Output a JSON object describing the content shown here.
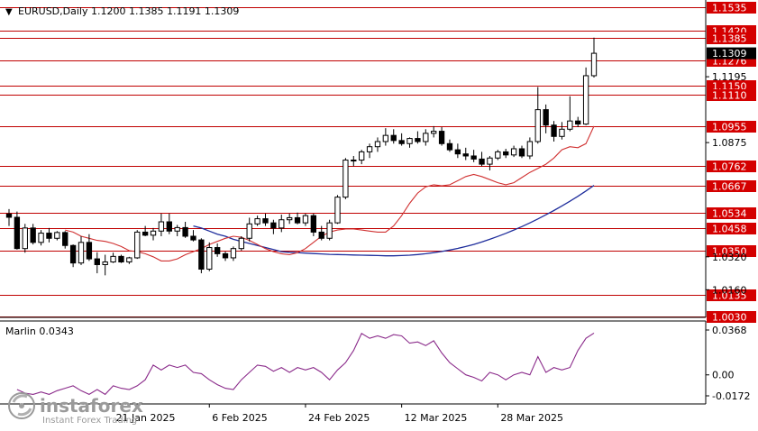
{
  "header": {
    "menu_glyph": "▼",
    "title_text": "EURUSD,Daily  1.1200 1.1385 1.1191 1.1309"
  },
  "indicator": {
    "title_text": "Marlin 0.0343",
    "axis_labels": [
      "0.0368",
      "0.00",
      "-0.0172"
    ]
  },
  "watermark": {
    "brand": "instaforex",
    "tagline": "Instant Forex Trading"
  },
  "colors": {
    "background": "#ffffff",
    "candle": "#000000",
    "level_line": "#c00000",
    "level_label_bg": "#d40000",
    "ma_slow": "#1e2d9c",
    "ma_fast": "#d03030",
    "oscillator": "#8a2a8a",
    "current_price_bg": "#000000"
  },
  "chart_data": {
    "type": "candlestick",
    "symbol": "EURUSD",
    "timeframe": "Daily",
    "last_ohlc": {
      "open": 1.12,
      "high": 1.1385,
      "low": 1.1191,
      "close": 1.1309
    },
    "y_range": [
      1.003,
      1.1535
    ],
    "x_tick_labels": [
      "21 Jan 2025",
      "6 Feb 2025",
      "24 Feb 2025",
      "12 Mar 2025",
      "28 Mar 2025"
    ],
    "x_tick_index": [
      13,
      25,
      37,
      49,
      61
    ],
    "price_axis_plain_labels": [
      "1.1195",
      "1.0875",
      "1.0320",
      "1.0160"
    ],
    "current_price_label": "1.1309",
    "levels": [
      {
        "value": 1.1535,
        "label": "1.1535"
      },
      {
        "value": 1.142,
        "label": "1.1420"
      },
      {
        "value": 1.1385,
        "label": "1.1385"
      },
      {
        "value": 1.1276,
        "label": "1.1276"
      },
      {
        "value": 1.115,
        "label": "1.1150"
      },
      {
        "value": 1.111,
        "label": "1.1110"
      },
      {
        "value": 1.0955,
        "label": "1.0955"
      },
      {
        "value": 1.0762,
        "label": "1.0762"
      },
      {
        "value": 1.0667,
        "label": "1.0667"
      },
      {
        "value": 1.0534,
        "label": "1.0534"
      },
      {
        "value": 1.0458,
        "label": "1.0458"
      },
      {
        "value": 1.035,
        "label": "1.0350"
      },
      {
        "value": 1.0135,
        "label": "1.0135"
      },
      {
        "value": 1.003,
        "label": "1.0030"
      }
    ],
    "candles": [
      {
        "o": 1.0528,
        "h": 1.0552,
        "l": 1.047,
        "c": 1.0512
      },
      {
        "o": 1.0512,
        "h": 1.054,
        "l": 1.0355,
        "c": 1.036
      },
      {
        "o": 1.036,
        "h": 1.048,
        "l": 1.034,
        "c": 1.046
      },
      {
        "o": 1.046,
        "h": 1.048,
        "l": 1.038,
        "c": 1.039
      },
      {
        "o": 1.039,
        "h": 1.045,
        "l": 1.0375,
        "c": 1.0435
      },
      {
        "o": 1.0435,
        "h": 1.046,
        "l": 1.039,
        "c": 1.041
      },
      {
        "o": 1.041,
        "h": 1.0445,
        "l": 1.04,
        "c": 1.0438
      },
      {
        "o": 1.0438,
        "h": 1.0445,
        "l": 1.036,
        "c": 1.0375
      },
      {
        "o": 1.0375,
        "h": 1.038,
        "l": 1.027,
        "c": 1.029
      },
      {
        "o": 1.029,
        "h": 1.042,
        "l": 1.028,
        "c": 1.039
      },
      {
        "o": 1.039,
        "h": 1.043,
        "l": 1.03,
        "c": 1.031
      },
      {
        "o": 1.031,
        "h": 1.0342,
        "l": 1.024,
        "c": 1.0282
      },
      {
        "o": 1.0282,
        "h": 1.033,
        "l": 1.023,
        "c": 1.0295
      },
      {
        "o": 1.0295,
        "h": 1.034,
        "l": 1.029,
        "c": 1.0322
      },
      {
        "o": 1.0322,
        "h": 1.033,
        "l": 1.029,
        "c": 1.0295
      },
      {
        "o": 1.0295,
        "h": 1.032,
        "l": 1.0285,
        "c": 1.0315
      },
      {
        "o": 1.0315,
        "h": 1.045,
        "l": 1.031,
        "c": 1.044
      },
      {
        "o": 1.044,
        "h": 1.047,
        "l": 1.042,
        "c": 1.0425
      },
      {
        "o": 1.0425,
        "h": 1.046,
        "l": 1.04,
        "c": 1.0445
      },
      {
        "o": 1.0445,
        "h": 1.053,
        "l": 1.042,
        "c": 1.049
      },
      {
        "o": 1.049,
        "h": 1.053,
        "l": 1.043,
        "c": 1.0445
      },
      {
        "o": 1.0445,
        "h": 1.0475,
        "l": 1.042,
        "c": 1.0462
      },
      {
        "o": 1.0462,
        "h": 1.049,
        "l": 1.0412,
        "c": 1.042
      },
      {
        "o": 1.042,
        "h": 1.045,
        "l": 1.0395,
        "c": 1.0402
      },
      {
        "o": 1.0402,
        "h": 1.041,
        "l": 1.024,
        "c": 1.026
      },
      {
        "o": 1.026,
        "h": 1.039,
        "l": 1.025,
        "c": 1.0365
      },
      {
        "o": 1.0365,
        "h": 1.0385,
        "l": 1.032,
        "c": 1.0335
      },
      {
        "o": 1.0335,
        "h": 1.0345,
        "l": 1.03,
        "c": 1.0315
      },
      {
        "o": 1.0315,
        "h": 1.037,
        "l": 1.03,
        "c": 1.036
      },
      {
        "o": 1.036,
        "h": 1.042,
        "l": 1.035,
        "c": 1.041
      },
      {
        "o": 1.041,
        "h": 1.051,
        "l": 1.0395,
        "c": 1.048
      },
      {
        "o": 1.048,
        "h": 1.052,
        "l": 1.047,
        "c": 1.0505
      },
      {
        "o": 1.0505,
        "h": 1.053,
        "l": 1.047,
        "c": 1.0485
      },
      {
        "o": 1.0485,
        "h": 1.05,
        "l": 1.043,
        "c": 1.046
      },
      {
        "o": 1.046,
        "h": 1.0525,
        "l": 1.044,
        "c": 1.05
      },
      {
        "o": 1.05,
        "h": 1.053,
        "l": 1.048,
        "c": 1.051
      },
      {
        "o": 1.051,
        "h": 1.0535,
        "l": 1.0478,
        "c": 1.0485
      },
      {
        "o": 1.0485,
        "h": 1.053,
        "l": 1.047,
        "c": 1.052
      },
      {
        "o": 1.052,
        "h": 1.053,
        "l": 1.042,
        "c": 1.044
      },
      {
        "o": 1.044,
        "h": 1.047,
        "l": 1.04,
        "c": 1.041
      },
      {
        "o": 1.041,
        "h": 1.05,
        "l": 1.04,
        "c": 1.0485
      },
      {
        "o": 1.0485,
        "h": 1.062,
        "l": 1.048,
        "c": 1.061
      },
      {
        "o": 1.061,
        "h": 1.08,
        "l": 1.06,
        "c": 1.079
      },
      {
        "o": 1.079,
        "h": 1.081,
        "l": 1.076,
        "c": 1.079
      },
      {
        "o": 1.079,
        "h": 1.084,
        "l": 1.077,
        "c": 1.083
      },
      {
        "o": 1.083,
        "h": 1.087,
        "l": 1.08,
        "c": 1.0855
      },
      {
        "o": 1.0855,
        "h": 1.09,
        "l": 1.083,
        "c": 1.088
      },
      {
        "o": 1.088,
        "h": 1.0945,
        "l": 1.086,
        "c": 1.091
      },
      {
        "o": 1.091,
        "h": 1.094,
        "l": 1.087,
        "c": 1.0885
      },
      {
        "o": 1.0885,
        "h": 1.092,
        "l": 1.086,
        "c": 1.087
      },
      {
        "o": 1.087,
        "h": 1.09,
        "l": 1.085,
        "c": 1.0895
      },
      {
        "o": 1.0895,
        "h": 1.093,
        "l": 1.087,
        "c": 1.088
      },
      {
        "o": 1.088,
        "h": 1.094,
        "l": 1.086,
        "c": 1.092
      },
      {
        "o": 1.092,
        "h": 1.0955,
        "l": 1.09,
        "c": 1.093
      },
      {
        "o": 1.093,
        "h": 1.095,
        "l": 1.086,
        "c": 1.087
      },
      {
        "o": 1.087,
        "h": 1.089,
        "l": 1.083,
        "c": 1.084
      },
      {
        "o": 1.084,
        "h": 1.087,
        "l": 1.08,
        "c": 1.082
      },
      {
        "o": 1.082,
        "h": 1.085,
        "l": 1.079,
        "c": 1.081
      },
      {
        "o": 1.081,
        "h": 1.084,
        "l": 1.078,
        "c": 1.0795
      },
      {
        "o": 1.0795,
        "h": 1.083,
        "l": 1.076,
        "c": 1.077
      },
      {
        "o": 1.077,
        "h": 1.081,
        "l": 1.074,
        "c": 1.08
      },
      {
        "o": 1.08,
        "h": 1.084,
        "l": 1.079,
        "c": 1.083
      },
      {
        "o": 1.083,
        "h": 1.0845,
        "l": 1.08,
        "c": 1.0815
      },
      {
        "o": 1.0815,
        "h": 1.086,
        "l": 1.0805,
        "c": 1.0845
      },
      {
        "o": 1.0845,
        "h": 1.086,
        "l": 1.08,
        "c": 1.081
      },
      {
        "o": 1.081,
        "h": 1.09,
        "l": 1.0795,
        "c": 1.088
      },
      {
        "o": 1.088,
        "h": 1.1145,
        "l": 1.087,
        "c": 1.1035
      },
      {
        "o": 1.1035,
        "h": 1.106,
        "l": 1.092,
        "c": 1.096
      },
      {
        "o": 1.096,
        "h": 1.098,
        "l": 1.088,
        "c": 1.0905
      },
      {
        "o": 1.0905,
        "h": 1.0975,
        "l": 1.089,
        "c": 1.094
      },
      {
        "o": 1.094,
        "h": 1.11,
        "l": 1.093,
        "c": 1.098
      },
      {
        "o": 1.098,
        "h": 1.1,
        "l": 1.095,
        "c": 1.0965
      },
      {
        "o": 1.0965,
        "h": 1.124,
        "l": 1.096,
        "c": 1.12
      },
      {
        "o": 1.12,
        "h": 1.1385,
        "l": 1.1191,
        "c": 1.1309
      }
    ],
    "series": [
      {
        "type": "line",
        "values": [
          1.047,
          1.046,
          1.0445,
          1.043,
          1.042,
          1.0405,
          1.0395,
          1.0385,
          1.0375,
          1.0365,
          1.0355,
          1.0345,
          1.0342,
          1.034,
          1.0338,
          1.0336,
          1.0334,
          1.0332,
          1.0331,
          1.033,
          1.0329,
          1.0328,
          1.0327,
          1.0326,
          1.0325,
          1.0325,
          1.0326,
          1.0328,
          1.0331,
          1.0335,
          1.034,
          1.0346,
          1.0353,
          1.0361,
          1.037,
          1.038,
          1.0392,
          1.0405,
          1.0419,
          1.0434,
          1.045,
          1.0467,
          1.0485,
          1.0504,
          1.0524,
          1.0545,
          1.0567,
          1.059,
          1.0614,
          1.064,
          1.0667
        ]
      },
      {
        "type": "line",
        "values": [
          1.045,
          1.044,
          1.042,
          1.041,
          1.04,
          1.0395,
          1.0385,
          1.037,
          1.035,
          1.0345,
          1.0335,
          1.032,
          1.03,
          1.03,
          1.031,
          1.033,
          1.0345,
          1.036,
          1.038,
          1.0395,
          1.041,
          1.042,
          1.0415,
          1.04,
          1.038,
          1.036,
          1.0345,
          1.0335,
          1.033,
          1.034,
          1.036,
          1.039,
          1.042,
          1.044,
          1.045,
          1.0455,
          1.0455,
          1.045,
          1.0445,
          1.044,
          1.044,
          1.047,
          1.052,
          1.058,
          1.063,
          1.066,
          1.067,
          1.0665,
          1.067,
          1.069,
          1.071,
          1.072,
          1.071,
          1.0695,
          1.068,
          1.067,
          1.068,
          1.0705,
          1.073,
          1.075,
          1.077,
          1.08,
          1.084,
          1.0855,
          1.085,
          1.087,
          1.0955
        ]
      },
      {
        "name": "Marlin",
        "type": "line",
        "values": [
          -0.012,
          -0.015,
          -0.016,
          -0.014,
          -0.016,
          -0.013,
          -0.011,
          -0.009,
          -0.013,
          -0.016,
          -0.012,
          -0.016,
          -0.009,
          -0.011,
          -0.012,
          -0.009,
          -0.004,
          0.008,
          0.004,
          0.008,
          0.006,
          0.008,
          0.002,
          0.001,
          -0.004,
          -0.008,
          -0.011,
          -0.012,
          -0.004,
          0.002,
          0.008,
          0.007,
          0.003,
          0.006,
          0.002,
          0.006,
          0.004,
          0.006,
          0.002,
          -0.004,
          0.004,
          0.01,
          0.02,
          0.034,
          0.03,
          0.032,
          0.03,
          0.033,
          0.032,
          0.026,
          0.027,
          0.024,
          0.028,
          0.018,
          0.01,
          0.005,
          0.0,
          -0.002,
          -0.005,
          0.002,
          0.0,
          -0.004,
          0.0,
          0.002,
          0.0,
          0.015,
          0.002,
          0.006,
          0.004,
          0.006,
          0.02,
          0.03,
          0.0343
        ]
      }
    ],
    "oscillator_range": [
      -0.0172,
      0.0368
    ]
  }
}
